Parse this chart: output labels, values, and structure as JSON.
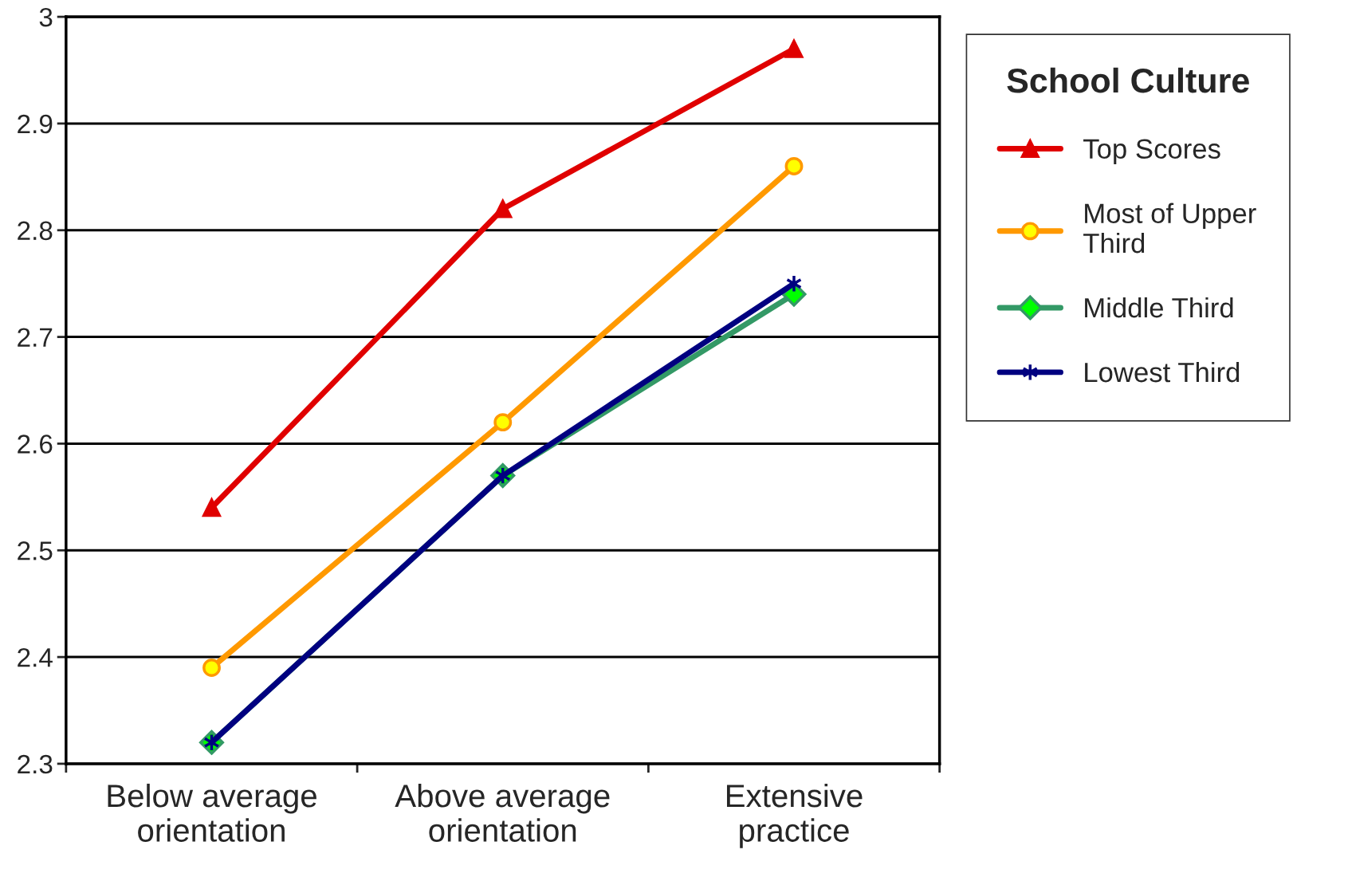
{
  "chart_data": {
    "type": "line",
    "categories": [
      "Below average\norientation",
      "Above average\norientation",
      "Extensive\npractice"
    ],
    "series": [
      {
        "name": "Top Scores",
        "color": "#e00000",
        "marker": "triangle",
        "values": [
          2.54,
          2.82,
          2.97
        ]
      },
      {
        "name": "Most of Upper\nThird",
        "color": "#ff9900",
        "marker": "circle",
        "values": [
          2.39,
          2.62,
          2.86
        ]
      },
      {
        "name": "Middle Third",
        "color": "#339966",
        "marker": "diamond",
        "values": [
          2.32,
          2.57,
          2.74
        ]
      },
      {
        "name": "Lowest Third",
        "color": "#000080",
        "marker": "cross",
        "values": [
          2.32,
          2.57,
          2.75
        ]
      }
    ],
    "ylim": [
      2.3,
      3
    ],
    "yticks": [
      2.3,
      2.4,
      2.5,
      2.6,
      2.7,
      2.8,
      2.9,
      3
    ],
    "grid": "y",
    "legend": "right",
    "legend_title": "School Culture",
    "line_style": "solid"
  }
}
